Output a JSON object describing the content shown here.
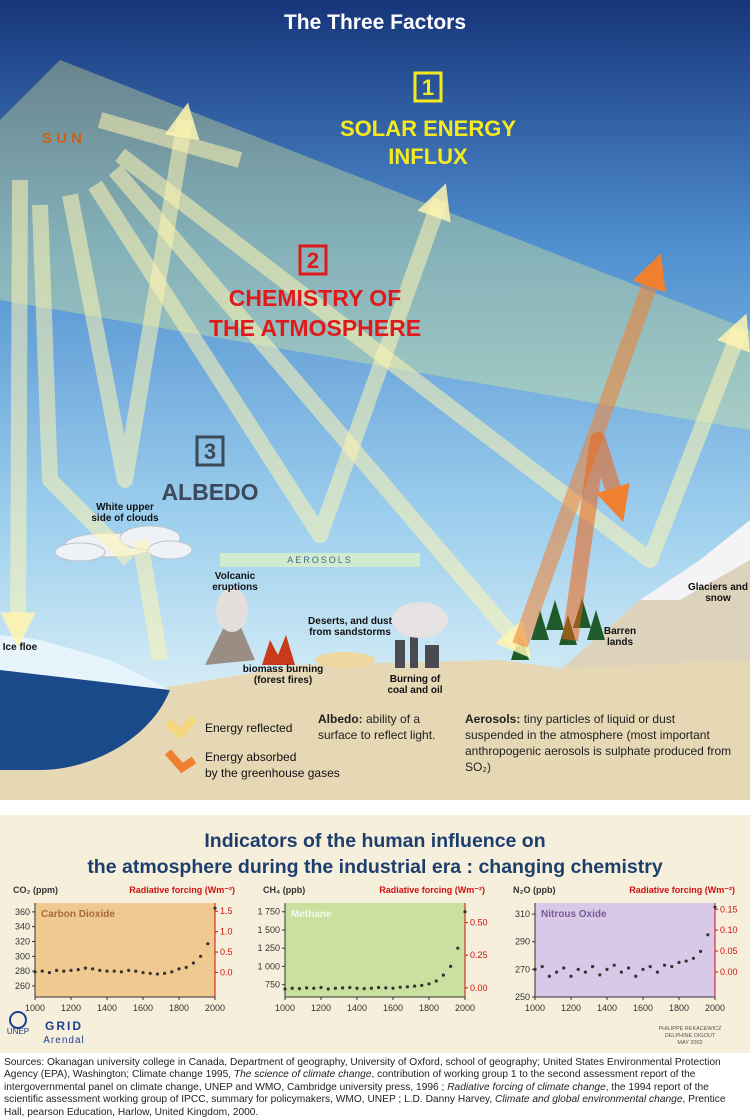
{
  "header": {
    "title": "The Three Factors"
  },
  "factors": [
    {
      "number": "1",
      "lines": [
        "SOLAR ENERGY",
        "INFLUX"
      ]
    },
    {
      "number": "2",
      "lines": [
        "CHEMISTRY OF",
        "THE ATMOSPHERE"
      ]
    },
    {
      "number": "3",
      "lines": [
        "ALBEDO"
      ]
    }
  ],
  "sun_label": "S U N",
  "labels": {
    "clouds": [
      "White upper",
      "side of clouds"
    ],
    "aerosols": "AEROSOLS",
    "volcanic": [
      "Volcanic",
      "eruptions"
    ],
    "deserts": [
      "Deserts, and dust",
      "from sandstorms"
    ],
    "biomass": [
      "biomass burning",
      "(forest fires)"
    ],
    "coal": [
      "Burning of",
      "coal and oil"
    ],
    "ice": "Ice floe",
    "barren": [
      "Barren",
      "lands"
    ],
    "glaciers": [
      "Glaciers and",
      "snow"
    ]
  },
  "legend": {
    "reflected": "Energy reflected",
    "absorbed": [
      "Energy absorbed",
      "by the greenhouse gases"
    ]
  },
  "definitions": {
    "albedo": {
      "term": "Albedo:",
      "text": " ability of a surface to reflect light."
    },
    "aerosols": {
      "term": "Aerosols:",
      "text": " tiny particles of liquid or dust suspended in the atmosphere (most important anthropogenic aerosols is sulphate produced from SO₂)"
    }
  },
  "indicators_title": [
    "Indicators of the human influence on",
    "the atmosphere during the industrial era : changing chemistry"
  ],
  "chart_data": [
    {
      "type": "scatter",
      "ylabel": "CO₂ (ppm)",
      "y2label": "Radiative forcing (Wm⁻²)",
      "panel_color": "#efc98f",
      "x": [
        1000,
        1040,
        1080,
        1120,
        1160,
        1200,
        1240,
        1280,
        1320,
        1360,
        1400,
        1440,
        1480,
        1520,
        1560,
        1600,
        1640,
        1680,
        1720,
        1760,
        1800,
        1840,
        1880,
        1920,
        1960,
        2000
      ],
      "series": [
        {
          "name": "Carbon Dioxide",
          "color": "#333333",
          "label_color": "#a86a3a",
          "values": [
            279,
            280,
            278,
            281,
            280,
            281,
            282,
            284,
            283,
            281,
            280,
            280,
            279,
            281,
            280,
            278,
            277,
            276,
            277,
            279,
            283,
            285,
            291,
            300,
            317,
            365
          ]
        }
      ],
      "xlim": [
        1000,
        2000
      ],
      "xticks": [
        1000,
        1200,
        1400,
        1600,
        1800,
        2000
      ],
      "ylim": [
        245,
        372
      ],
      "yticks": [
        260,
        280,
        300,
        320,
        340,
        360
      ],
      "y2lim": [
        -0.6,
        1.7
      ],
      "y2ticks": [
        {
          "value": 0,
          "label": "0.0"
        },
        {
          "value": 0.5,
          "label": "0.5"
        },
        {
          "value": 1,
          "label": "1.0"
        },
        {
          "value": 1.5,
          "label": "1.5"
        }
      ]
    },
    {
      "type": "scatter",
      "ylabel": "CH₄ (ppb)",
      "y2label": "Radiative forcing (Wm⁻²)",
      "panel_color": "#c9e09e",
      "x": [
        1000,
        1040,
        1080,
        1120,
        1160,
        1200,
        1240,
        1280,
        1320,
        1360,
        1400,
        1440,
        1480,
        1520,
        1560,
        1600,
        1640,
        1680,
        1720,
        1760,
        1800,
        1840,
        1880,
        1920,
        1960,
        2000
      ],
      "series": [
        {
          "name": "Methane",
          "color": "#333333",
          "label_color": "#f4f8ec",
          "values": [
            690,
            700,
            695,
            705,
            700,
            710,
            690,
            700,
            705,
            710,
            700,
            695,
            700,
            710,
            705,
            700,
            715,
            720,
            730,
            740,
            760,
            800,
            880,
            1000,
            1250,
            1750
          ]
        }
      ],
      "xlim": [
        1000,
        2000
      ],
      "xticks": [
        1000,
        1200,
        1400,
        1600,
        1800,
        2000
      ],
      "ylim": [
        580,
        1870
      ],
      "yticks": [
        750,
        {
          "value": 1000,
          "label": "1 000"
        },
        {
          "value": 1250,
          "label": "1 250"
        },
        {
          "value": 1500,
          "label": "1 500"
        },
        {
          "value": 1750,
          "label": "1 750"
        }
      ],
      "y2lim": [
        -0.07,
        0.65
      ],
      "y2ticks": [
        {
          "value": 0,
          "label": "0.00"
        },
        {
          "value": 0.25,
          "label": "0.25"
        },
        {
          "value": 0.5,
          "label": "0.50"
        }
      ]
    },
    {
      "type": "scatter",
      "ylabel": "N₂O (ppb)",
      "y2label": "Radiative forcing (Wm⁻²)",
      "panel_color": "#d9c9e8",
      "x": [
        1000,
        1040,
        1080,
        1120,
        1160,
        1200,
        1240,
        1280,
        1320,
        1360,
        1400,
        1440,
        1480,
        1520,
        1560,
        1600,
        1640,
        1680,
        1720,
        1760,
        1800,
        1840,
        1880,
        1920,
        1960,
        2000
      ],
      "series": [
        {
          "name": "Nitrous Oxide",
          "color": "#333333",
          "label_color": "#7a5a9a",
          "values": [
            270,
            272,
            265,
            268,
            271,
            265,
            270,
            268,
            272,
            266,
            270,
            273,
            268,
            271,
            265,
            270,
            272,
            268,
            273,
            272,
            275,
            276,
            278,
            283,
            295,
            315
          ]
        }
      ],
      "xlim": [
        1000,
        2000
      ],
      "xticks": [
        1000,
        1200,
        1400,
        1600,
        1800,
        2000
      ],
      "ylim": [
        250,
        318
      ],
      "yticks": [
        250,
        270,
        290,
        310
      ],
      "y2lim": [
        -0.06,
        0.165
      ],
      "y2ticks": [
        {
          "value": 0,
          "label": "0.00"
        },
        {
          "value": 0.05,
          "label": "0.05"
        },
        {
          "value": 0.1,
          "label": "0.10"
        },
        {
          "value": 0.15,
          "label": "0.15"
        }
      ]
    }
  ],
  "logos": {
    "unep": "UNEP",
    "grid": "GRID",
    "arendal": "Arendal"
  },
  "credits": [
    "PHILIPPE REKACEWICZ",
    "DELPHINE DIGOUT",
    "MAY 2002"
  ],
  "sources": [
    "Sources: Okanagan university college in Canada, Department of geography, University of Oxford, school of geography; United States Environmental Protection Agency (EPA), Washington; Climate change 1995, ",
    "The science of climate change",
    ", contribution of working group 1 to the second assessment report of the intergovernmental panel on climate change, UNEP and WMO, Cambridge university press,  1996 ; ",
    "Radiative forcing of climate change",
    ", the 1994 report of the scientific assessment working group of IPCC, summary for policymakers, WMO, UNEP ; L.D. Danny Harvey, ",
    "Climate and global environmental change",
    ", Prentice Hall, pearson Education, Harlow, United Kingdom, 2000."
  ]
}
